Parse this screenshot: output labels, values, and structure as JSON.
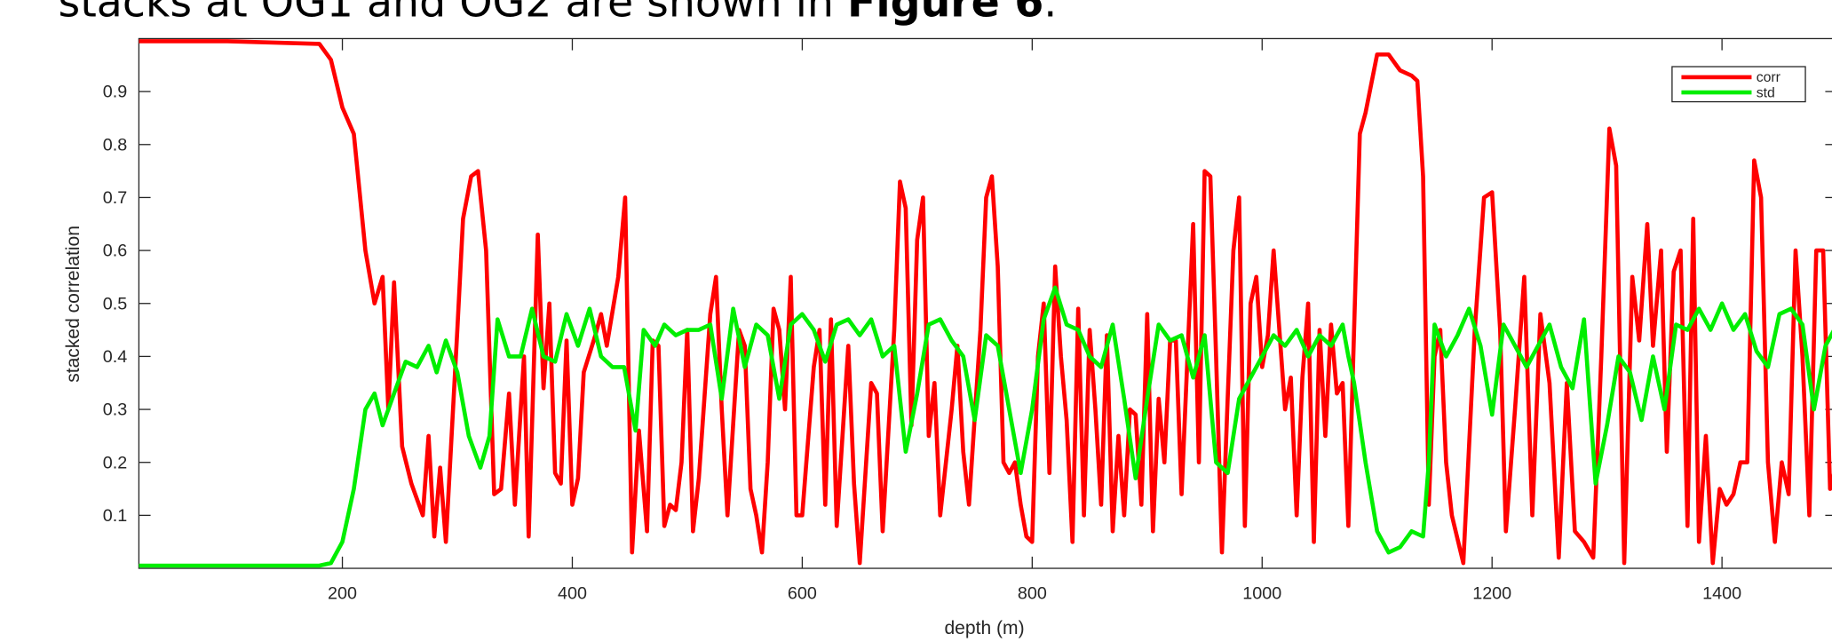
{
  "intro": {
    "text": "stacks at OG1 and OG2 are shown in ",
    "bold": "Figure 6",
    "end": "."
  },
  "chart_data": {
    "type": "line",
    "xlabel": "depth (m)",
    "ylabel": "stacked correlation",
    "xlim": [
      23,
      1500
    ],
    "ylim": [
      0,
      1
    ],
    "xticks": [
      200,
      400,
      600,
      800,
      1000,
      1200,
      1400
    ],
    "yticks": [
      0.1,
      0.2,
      0.3,
      0.4,
      0.5,
      0.6,
      0.7,
      0.8,
      0.9
    ],
    "grid": false,
    "legend": "upper right",
    "series": [
      {
        "name": "corr",
        "color": "#ff0000",
        "x": [
          23,
          100,
          180,
          190,
          200,
          210,
          220,
          228,
          235,
          240,
          245,
          252,
          260,
          270,
          275,
          280,
          285,
          290,
          300,
          305,
          312,
          318,
          325,
          332,
          338,
          345,
          350,
          358,
          362,
          370,
          375,
          380,
          385,
          390,
          395,
          400,
          405,
          410,
          420,
          425,
          430,
          440,
          446,
          452,
          458,
          465,
          470,
          475,
          480,
          485,
          490,
          495,
          500,
          505,
          510,
          520,
          525,
          530,
          535,
          545,
          550,
          555,
          560,
          565,
          570,
          575,
          580,
          585,
          590,
          595,
          600,
          610,
          615,
          620,
          625,
          630,
          640,
          645,
          650,
          660,
          665,
          670,
          680,
          685,
          690,
          695,
          700,
          705,
          710,
          715,
          720,
          730,
          735,
          740,
          745,
          755,
          760,
          765,
          770,
          775,
          780,
          785,
          790,
          795,
          800,
          805,
          810,
          815,
          820,
          825,
          830,
          835,
          840,
          845,
          850,
          855,
          860,
          865,
          870,
          875,
          880,
          885,
          890,
          895,
          900,
          905,
          910,
          915,
          920,
          925,
          930,
          940,
          945,
          950,
          955,
          960,
          965,
          970,
          975,
          980,
          985,
          990,
          995,
          1000,
          1005,
          1010,
          1015,
          1020,
          1025,
          1030,
          1035,
          1040,
          1045,
          1050,
          1055,
          1060,
          1065,
          1070,
          1075,
          1085,
          1090,
          1100,
          1110,
          1120,
          1130,
          1135,
          1140,
          1145,
          1150,
          1155,
          1160,
          1165,
          1175,
          1185,
          1193,
          1200,
          1207,
          1212,
          1220,
          1228,
          1235,
          1242,
          1250,
          1258,
          1265,
          1272,
          1280,
          1288,
          1295,
          1302,
          1308,
          1315,
          1322,
          1328,
          1335,
          1340,
          1347,
          1352,
          1358,
          1364,
          1370,
          1375,
          1380,
          1386,
          1392,
          1398,
          1404,
          1410,
          1416,
          1422,
          1428,
          1434,
          1440,
          1446,
          1452,
          1458,
          1464,
          1470,
          1476,
          1482,
          1488,
          1494,
          1500
        ],
        "values": [
          0.995,
          0.995,
          0.99,
          0.96,
          0.87,
          0.82,
          0.6,
          0.5,
          0.55,
          0.3,
          0.54,
          0.23,
          0.16,
          0.1,
          0.25,
          0.06,
          0.19,
          0.05,
          0.45,
          0.66,
          0.74,
          0.75,
          0.6,
          0.14,
          0.15,
          0.33,
          0.12,
          0.4,
          0.06,
          0.63,
          0.34,
          0.5,
          0.18,
          0.16,
          0.43,
          0.12,
          0.17,
          0.37,
          0.44,
          0.48,
          0.42,
          0.55,
          0.7,
          0.03,
          0.26,
          0.07,
          0.43,
          0.42,
          0.08,
          0.12,
          0.11,
          0.2,
          0.45,
          0.07,
          0.17,
          0.48,
          0.55,
          0.3,
          0.1,
          0.45,
          0.42,
          0.15,
          0.1,
          0.03,
          0.2,
          0.49,
          0.45,
          0.3,
          0.55,
          0.1,
          0.1,
          0.38,
          0.45,
          0.12,
          0.47,
          0.08,
          0.42,
          0.16,
          0.01,
          0.35,
          0.33,
          0.07,
          0.45,
          0.73,
          0.68,
          0.27,
          0.62,
          0.7,
          0.25,
          0.35,
          0.1,
          0.3,
          0.42,
          0.22,
          0.12,
          0.45,
          0.7,
          0.74,
          0.57,
          0.2,
          0.18,
          0.2,
          0.12,
          0.06,
          0.05,
          0.4,
          0.5,
          0.18,
          0.57,
          0.4,
          0.28,
          0.05,
          0.49,
          0.1,
          0.45,
          0.3,
          0.12,
          0.44,
          0.07,
          0.25,
          0.1,
          0.3,
          0.29,
          0.12,
          0.48,
          0.07,
          0.32,
          0.2,
          0.43,
          0.43,
          0.14,
          0.65,
          0.2,
          0.75,
          0.74,
          0.4,
          0.03,
          0.32,
          0.6,
          0.7,
          0.08,
          0.5,
          0.55,
          0.38,
          0.44,
          0.6,
          0.45,
          0.3,
          0.36,
          0.1,
          0.36,
          0.5,
          0.05,
          0.45,
          0.25,
          0.46,
          0.33,
          0.35,
          0.08,
          0.82,
          0.86,
          0.97,
          0.97,
          0.94,
          0.93,
          0.92,
          0.74,
          0.12,
          0.4,
          0.45,
          0.2,
          0.1,
          0.01,
          0.45,
          0.7,
          0.71,
          0.45,
          0.07,
          0.3,
          0.55,
          0.1,
          0.48,
          0.35,
          0.02,
          0.35,
          0.07,
          0.05,
          0.02,
          0.4,
          0.83,
          0.76,
          0.01,
          0.55,
          0.43,
          0.65,
          0.42,
          0.6,
          0.22,
          0.56,
          0.6,
          0.08,
          0.66,
          0.05,
          0.25,
          0.01,
          0.15,
          0.12,
          0.14,
          0.2,
          0.2,
          0.77,
          0.7,
          0.2,
          0.05,
          0.2,
          0.14,
          0.6,
          0.4,
          0.1,
          0.6,
          0.6,
          0.15,
          0.2
        ]
      },
      {
        "name": "std",
        "color": "#00ee00",
        "x": [
          23,
          100,
          180,
          190,
          200,
          210,
          220,
          228,
          235,
          245,
          255,
          265,
          275,
          282,
          290,
          300,
          310,
          320,
          328,
          335,
          345,
          355,
          365,
          375,
          385,
          395,
          405,
          415,
          425,
          435,
          445,
          455,
          462,
          472,
          480,
          490,
          500,
          510,
          520,
          530,
          540,
          550,
          560,
          570,
          580,
          590,
          600,
          610,
          620,
          630,
          640,
          650,
          660,
          670,
          680,
          690,
          700,
          710,
          720,
          730,
          740,
          750,
          760,
          770,
          780,
          790,
          800,
          810,
          820,
          830,
          840,
          850,
          860,
          870,
          880,
          890,
          900,
          910,
          920,
          930,
          940,
          950,
          960,
          970,
          980,
          990,
          1000,
          1010,
          1020,
          1030,
          1040,
          1050,
          1060,
          1070,
          1075,
          1080,
          1090,
          1100,
          1110,
          1120,
          1130,
          1140,
          1145,
          1150,
          1160,
          1170,
          1180,
          1190,
          1200,
          1210,
          1220,
          1230,
          1240,
          1250,
          1260,
          1270,
          1280,
          1290,
          1300,
          1310,
          1320,
          1330,
          1340,
          1350,
          1360,
          1370,
          1380,
          1390,
          1400,
          1410,
          1420,
          1430,
          1440,
          1450,
          1460,
          1470,
          1480,
          1490,
          1500
        ],
        "values": [
          0.005,
          0.005,
          0.005,
          0.01,
          0.05,
          0.15,
          0.3,
          0.33,
          0.27,
          0.33,
          0.39,
          0.38,
          0.42,
          0.37,
          0.43,
          0.37,
          0.25,
          0.19,
          0.25,
          0.47,
          0.4,
          0.4,
          0.49,
          0.4,
          0.39,
          0.48,
          0.42,
          0.49,
          0.4,
          0.38,
          0.38,
          0.26,
          0.45,
          0.42,
          0.46,
          0.44,
          0.45,
          0.45,
          0.46,
          0.32,
          0.49,
          0.38,
          0.46,
          0.44,
          0.32,
          0.46,
          0.48,
          0.45,
          0.39,
          0.46,
          0.47,
          0.44,
          0.47,
          0.4,
          0.42,
          0.22,
          0.33,
          0.46,
          0.47,
          0.43,
          0.4,
          0.28,
          0.44,
          0.42,
          0.3,
          0.18,
          0.3,
          0.47,
          0.53,
          0.46,
          0.45,
          0.4,
          0.38,
          0.46,
          0.32,
          0.17,
          0.32,
          0.46,
          0.43,
          0.44,
          0.36,
          0.44,
          0.2,
          0.18,
          0.32,
          0.36,
          0.4,
          0.44,
          0.42,
          0.45,
          0.4,
          0.44,
          0.42,
          0.46,
          0.4,
          0.35,
          0.2,
          0.07,
          0.03,
          0.04,
          0.07,
          0.06,
          0.2,
          0.46,
          0.4,
          0.44,
          0.49,
          0.42,
          0.29,
          0.46,
          0.42,
          0.38,
          0.42,
          0.46,
          0.38,
          0.34,
          0.47,
          0.16,
          0.27,
          0.4,
          0.37,
          0.28,
          0.4,
          0.3,
          0.46,
          0.45,
          0.49,
          0.45,
          0.5,
          0.45,
          0.48,
          0.41,
          0.38,
          0.48,
          0.49,
          0.46,
          0.3,
          0.42,
          0.46
        ]
      }
    ]
  }
}
